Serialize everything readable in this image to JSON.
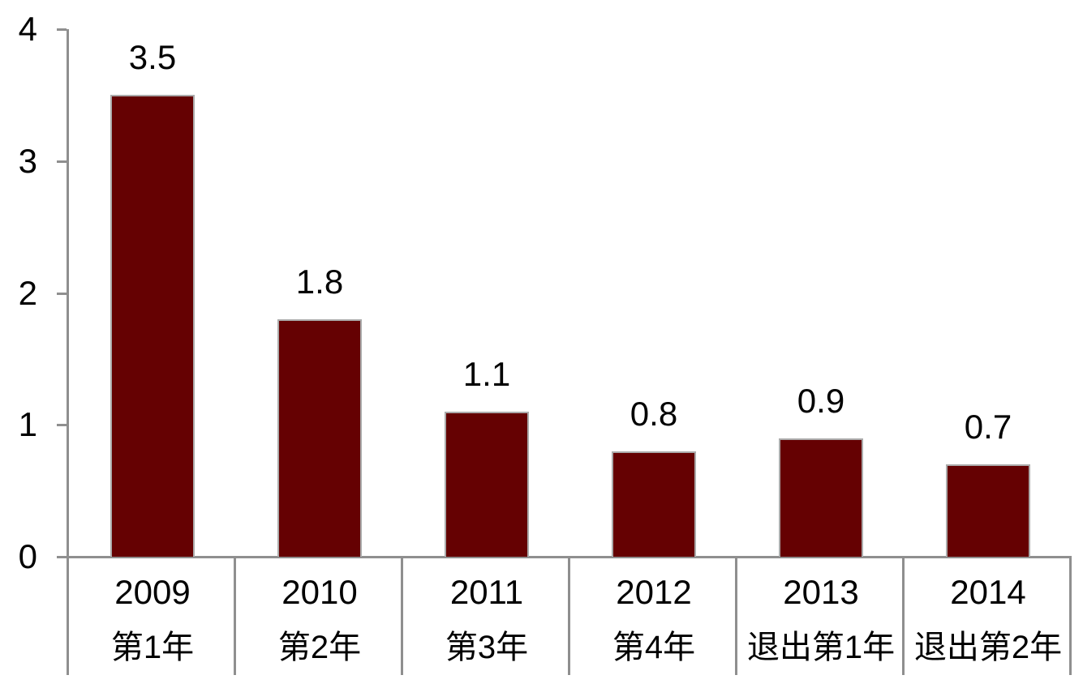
{
  "chart_data": {
    "type": "bar",
    "title": "",
    "xlabel": "",
    "ylabel": "",
    "categories": [
      {
        "year": "2009",
        "stage": "第1年"
      },
      {
        "year": "2010",
        "stage": "第2年"
      },
      {
        "year": "2011",
        "stage": "第3年"
      },
      {
        "year": "2012",
        "stage": "第4年"
      },
      {
        "year": "2013",
        "stage": "退出第1年"
      },
      {
        "year": "2014",
        "stage": "退出第2年"
      }
    ],
    "values": [
      3.5,
      1.8,
      1.1,
      0.8,
      0.9,
      0.7
    ],
    "value_labels": [
      "3.5",
      "1.8",
      "1.1",
      "0.8",
      "0.9",
      "0.7"
    ],
    "ylim": [
      0,
      4
    ],
    "yticks": [
      0,
      1,
      2,
      3,
      4
    ],
    "ytick_labels": [
      "0",
      "1",
      "2",
      "3",
      "4"
    ],
    "grid": false,
    "legend": "none",
    "colors": {
      "bar_fill": "#650102",
      "bar_border": "#ababab",
      "axis_line": "#8f8f8f",
      "text": "#000000",
      "background": "#ffffff"
    }
  }
}
